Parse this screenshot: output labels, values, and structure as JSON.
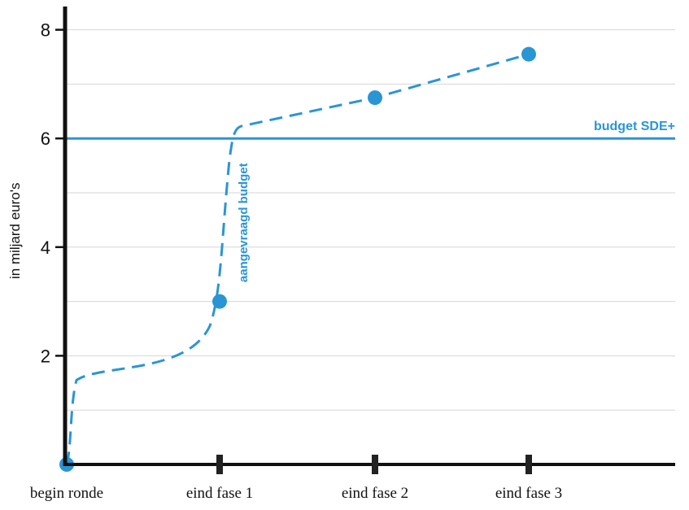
{
  "chart_data": {
    "type": "line",
    "title": "",
    "xlabel": "",
    "ylabel": "in miljard euro's",
    "ylim": [
      0,
      8.5
    ],
    "yticks": [
      2,
      4,
      6,
      8
    ],
    "ytick_labels": [
      "2",
      "4",
      "6",
      "8"
    ],
    "y_minor_gridlines": [
      1,
      3,
      5,
      7
    ],
    "grid": true,
    "categories": [
      "begin ronde",
      "eind fase 1",
      "eind fase 2",
      "eind fase 3"
    ],
    "series": [
      {
        "name": "aangevraagd budget",
        "style": "dashed",
        "color": "#2a95d5",
        "points": [
          {
            "x": "begin ronde",
            "y": 0
          },
          {
            "x": "eind fase 1",
            "y": 3.0
          },
          {
            "x": "eind fase 2",
            "y": 6.75
          },
          {
            "x": "eind fase 3",
            "y": 7.55
          }
        ]
      }
    ],
    "reference_lines": [
      {
        "label": "budget SDE+",
        "y": 6,
        "color": "#2a95d5"
      }
    ]
  }
}
